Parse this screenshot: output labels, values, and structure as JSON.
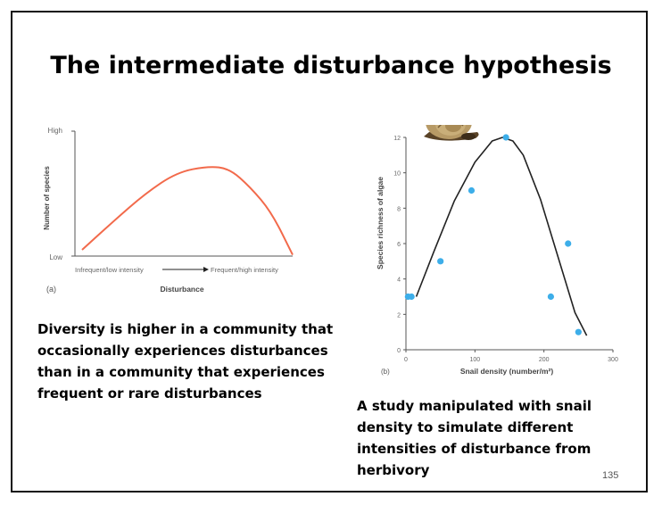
{
  "slide": {
    "title": "The intermediate disturbance hypothesis",
    "caption_left": "Diversity is higher in a community that occasionally experiences disturbances than in a community that experiences frequent or rare disturbances",
    "caption_right": "A study manipulated with snail density to simulate different intensities of disturbance from herbivory",
    "page_number": "135"
  },
  "chart_data": [
    {
      "type": "line",
      "panel_label": "(a)",
      "xlabel": "Disturbance",
      "ylabel": "Number of species",
      "y_tick_labels": [
        "High",
        "Low"
      ],
      "x_scale_labels": [
        "Infrequent/low intensity",
        "Frequent/high intensity"
      ],
      "x": [
        0,
        0.15,
        0.3,
        0.45,
        0.6,
        0.7,
        0.8,
        0.9,
        1.0
      ],
      "y": [
        0.05,
        0.28,
        0.5,
        0.67,
        0.72,
        0.7,
        0.55,
        0.35,
        0.01
      ],
      "colors": {
        "curve": "#f26a4b",
        "axis": "#555555"
      }
    },
    {
      "type": "scatter",
      "panel_label": "(b)",
      "xlabel": "Snail density (number/m²)",
      "ylabel": "Species richness of algae",
      "xlim": [
        0,
        300
      ],
      "ylim": [
        0,
        12
      ],
      "x_ticks": [
        0,
        100,
        200,
        300
      ],
      "y_ticks": [
        0,
        2,
        4,
        6,
        8,
        10,
        12
      ],
      "points": [
        {
          "x": 3,
          "y": 3
        },
        {
          "x": 8,
          "y": 3
        },
        {
          "x": 50,
          "y": 5
        },
        {
          "x": 95,
          "y": 9
        },
        {
          "x": 145,
          "y": 12
        },
        {
          "x": 210,
          "y": 3
        },
        {
          "x": 235,
          "y": 6
        },
        {
          "x": 250,
          "y": 1
        }
      ],
      "fit_curve": {
        "x": [
          15,
          40,
          70,
          100,
          125,
          140,
          155,
          170,
          195,
          220,
          245,
          262
        ],
        "y": [
          3,
          5.5,
          8.4,
          10.6,
          11.8,
          12,
          11.8,
          11,
          8.5,
          5.3,
          2.1,
          0.8
        ]
      },
      "colors": {
        "points": "#3daee9",
        "curve": "#222222",
        "axis": "#555555"
      },
      "illustration": "snail-icon"
    }
  ]
}
